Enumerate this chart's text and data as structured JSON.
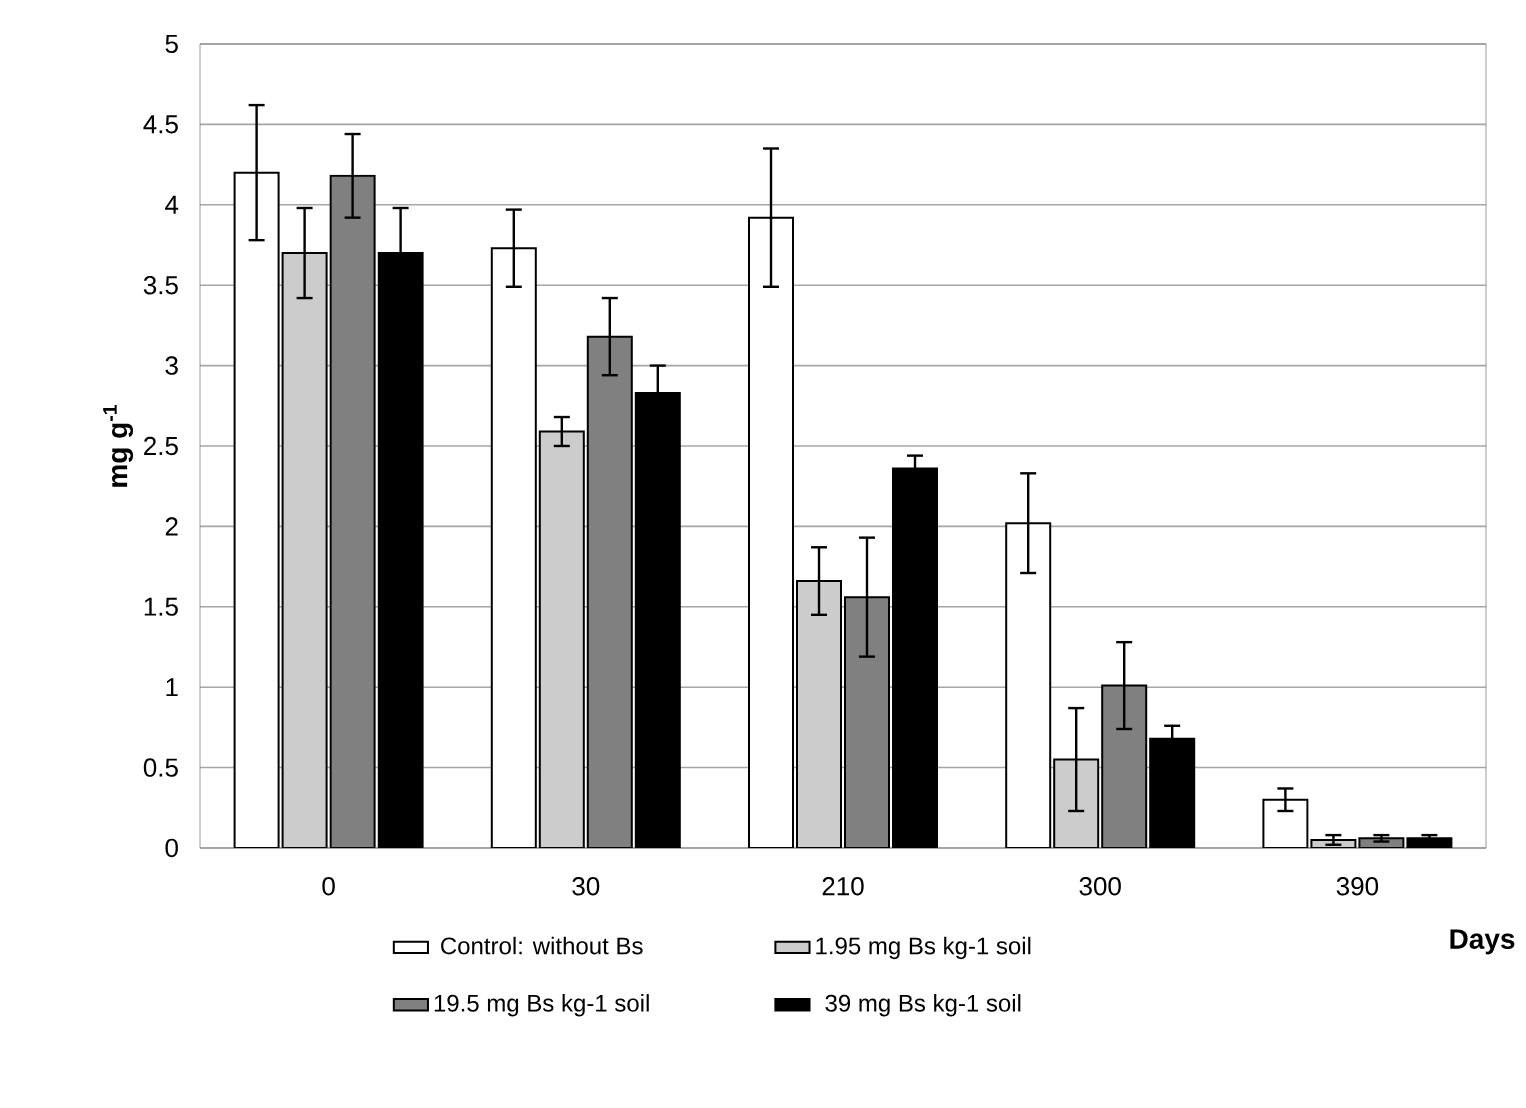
{
  "chart_data": {
    "type": "bar",
    "xlabel": "Days",
    "ylabel": "mg g$^{-1}$",
    "categories": [
      "0",
      "30",
      "210",
      "300",
      "390"
    ],
    "series": [
      {
        "name": "Control: without Bs",
        "color": "#ffffff",
        "values": [
          4.2,
          3.73,
          3.92,
          2.02,
          0.3
        ],
        "errors": [
          0.42,
          0.24,
          0.43,
          0.31,
          0.07
        ]
      },
      {
        "name": "1.95 mg Bs kg-1 soil",
        "color": "#cccccc",
        "values": [
          3.7,
          2.59,
          1.66,
          0.55,
          0.05
        ],
        "errors": [
          0.28,
          0.09,
          0.21,
          0.32,
          0.03
        ]
      },
      {
        "name": "19.5 mg Bs kg-1 soil",
        "color": "#808080",
        "values": [
          4.18,
          3.18,
          1.56,
          1.01,
          0.06
        ],
        "errors": [
          0.26,
          0.24,
          0.37,
          0.27,
          0.02
        ]
      },
      {
        "name": "39 mg Bs kg-1 soil",
        "color": "#000000",
        "values": [
          3.7,
          2.83,
          2.36,
          0.68,
          0.06
        ],
        "errors": [
          0.28,
          0.17,
          0.08,
          0.08,
          0.02
        ]
      }
    ],
    "ylim": [
      0,
      5
    ],
    "yticks": [
      0,
      0.5,
      1,
      1.5,
      2,
      2.5,
      3,
      3.5,
      4,
      4.5,
      5
    ],
    "grid": "y",
    "legend": "bottom"
  }
}
